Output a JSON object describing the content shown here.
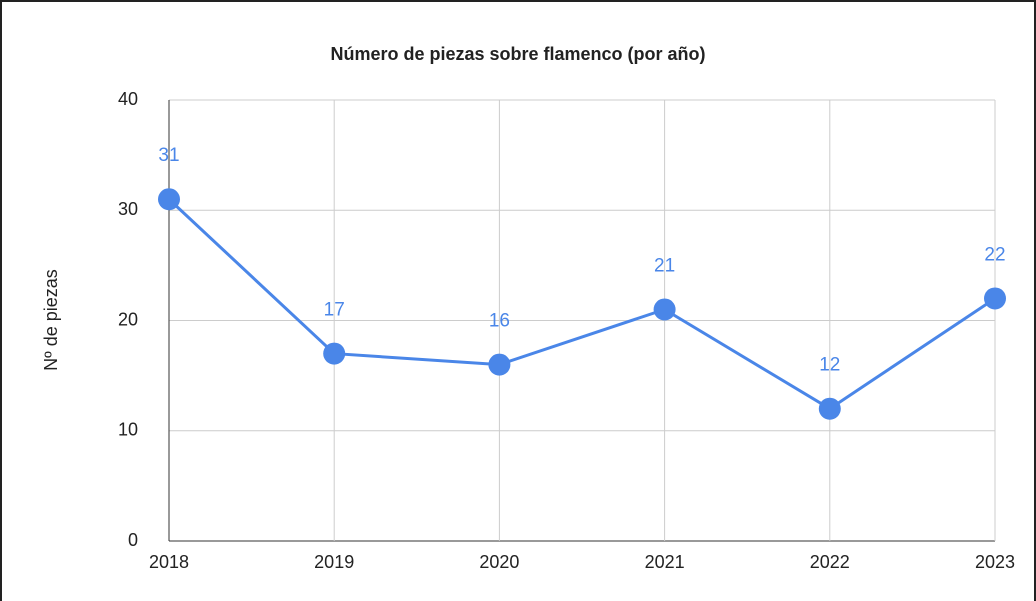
{
  "chart_data": {
    "type": "line",
    "title": "Número de piezas sobre flamenco (por año)",
    "y_label": "Nº de piezas",
    "x": [
      2018,
      2019,
      2020,
      2021,
      2022,
      2023
    ],
    "xlim": [
      2018,
      2023
    ],
    "xticks": [
      2018,
      2019,
      2020,
      2021,
      2022,
      2023
    ],
    "series": [
      {
        "name": "Nº de piezas",
        "color": "#4a86e8",
        "values": [
          31,
          17,
          16,
          21,
          12,
          22
        ]
      }
    ],
    "ylim": [
      0,
      40
    ],
    "yticks": [
      0,
      10,
      20,
      30,
      40
    ],
    "grid": true
  }
}
